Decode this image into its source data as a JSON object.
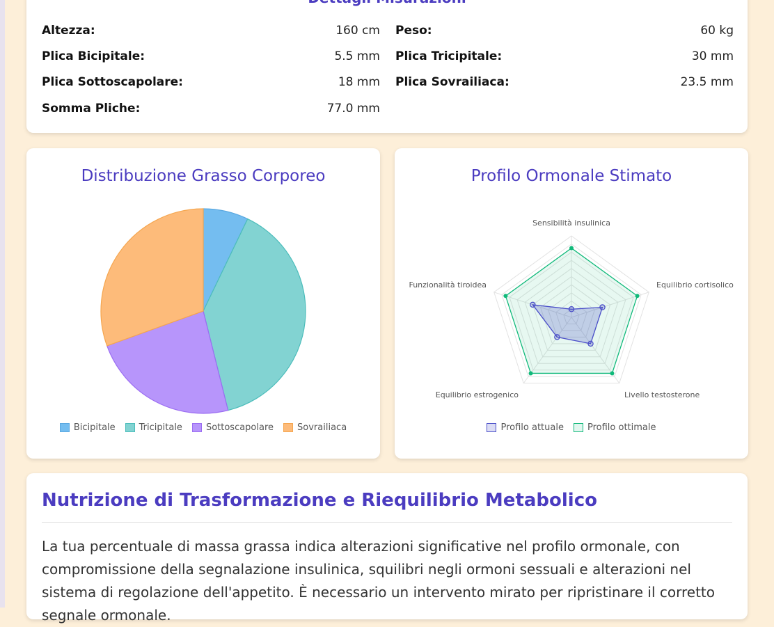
{
  "measurements": {
    "title": "Dettagli Misurazioni",
    "rows": [
      {
        "label": "Altezza:",
        "value": "160 cm"
      },
      {
        "label": "Peso:",
        "value": "60 kg"
      },
      {
        "label": "Plica Bicipitale:",
        "value": "5.5 mm"
      },
      {
        "label": "Plica Tricipitale:",
        "value": "30 mm"
      },
      {
        "label": "Plica Sottoscapolare:",
        "value": "18 mm"
      },
      {
        "label": "Plica Sovrailiaca:",
        "value": "23.5 mm"
      },
      {
        "label": "Somma Pliche:",
        "value": "77.0 mm"
      }
    ]
  },
  "chart_data": [
    {
      "type": "pie",
      "title": "Distribuzione Grasso Corporeo",
      "categories": [
        "Bicipitale",
        "Tricipitale",
        "Sottoscapolare",
        "Sovrailiaca"
      ],
      "values": [
        5.5,
        30,
        18,
        23.5
      ],
      "colors": [
        "#74bdf0",
        "#82d3d2",
        "#b795fb",
        "#fdbb7a"
      ],
      "borders": [
        "#5aa8e0",
        "#4cbdbb",
        "#9b6df2",
        "#f5a64f"
      ],
      "legend": "bottom"
    },
    {
      "type": "radar",
      "title": "Profilo Ormonale Stimato",
      "categories": [
        "Sensibilità insulinica",
        "Equilibrio cortisolico",
        "Livello testosterone",
        "Equilibrio estrogenico",
        "Funzionalità tiroidea"
      ],
      "rlim": [
        0,
        100
      ],
      "series": [
        {
          "name": "Profilo attuale",
          "values": [
            10,
            40,
            40,
            30,
            50
          ],
          "color": "#4b4fc9"
        },
        {
          "name": "Profilo ottimale",
          "values": [
            85,
            85,
            85,
            85,
            85
          ],
          "color": "#10b97a"
        }
      ],
      "legend": "bottom"
    }
  ],
  "nutrition": {
    "title": "Nutrizione di Trasformazione e Riequilibrio Metabolico",
    "text": "La tua percentuale di massa grassa indica alterazioni significative nel profilo ormonale, con compromissione della segnalazione insulinica, squilibri negli ormoni sessuali e alterazioni nel sistema di regolazione dell'appetito. È necessario un intervento mirato per ripristinare il corretto segnale ormonale."
  }
}
